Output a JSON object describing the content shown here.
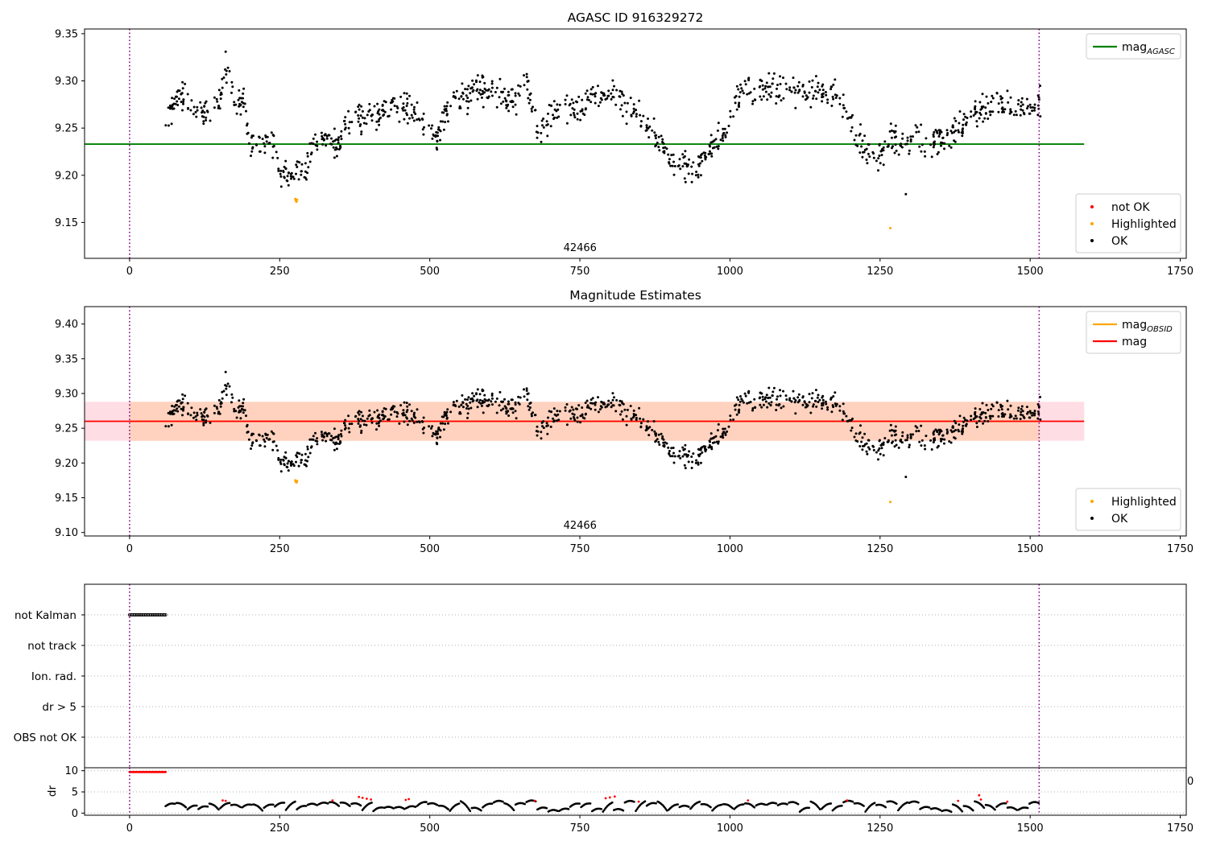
{
  "colors": {
    "ok": "#000000",
    "highlighted": "#ffa500",
    "not_ok": "#ff0000",
    "mag_agasc": "#008000",
    "mag_obsid": "#ffa500",
    "mag": "#ff0000",
    "band_outer": "#ffdde4",
    "band_inner": "#ffd2bf",
    "vline": "#800080",
    "grid": "#b0b0b0"
  },
  "chart_data": [
    {
      "type": "scatter",
      "title": "AGASC ID 916329272",
      "xlim": [
        -75,
        1760
      ],
      "ylim": [
        9.112,
        9.355
      ],
      "x_ticks": [
        0,
        250,
        500,
        750,
        1000,
        1250,
        1500,
        1750
      ],
      "y_ticks": [
        9.15,
        9.2,
        9.25,
        9.3,
        9.35
      ],
      "annotation": {
        "text": "42466",
        "x": 757
      },
      "vlines": [
        0,
        1515
      ],
      "hlines": [
        {
          "name": "mag_AGASC",
          "y": 9.233,
          "x_range": [
            -75,
            1590
          ]
        }
      ],
      "legend_upper": [
        {
          "label": "mag",
          "sub": "AGASC",
          "kind": "line",
          "color": "#008000"
        }
      ],
      "legend_lower": [
        {
          "label": "not OK",
          "kind": "dot",
          "color": "#ff0000"
        },
        {
          "label": "Highlighted",
          "kind": "dot",
          "color": "#ffa500"
        },
        {
          "label": "OK",
          "kind": "dot",
          "color": "#000000"
        }
      ],
      "series": [
        {
          "name": "OK",
          "shape": [
            [
              62,
              9.255
            ],
            [
              75,
              9.28
            ],
            [
              90,
              9.285
            ],
            [
              105,
              9.268
            ],
            [
              120,
              9.265
            ],
            [
              140,
              9.268
            ],
            [
              152,
              9.285
            ],
            [
              160,
              9.318
            ],
            [
              168,
              9.3
            ],
            [
              175,
              9.27
            ],
            [
              190,
              9.282
            ],
            [
              200,
              9.232
            ],
            [
              215,
              9.238
            ],
            [
              225,
              9.232
            ],
            [
              240,
              9.232
            ],
            [
              252,
              9.2
            ],
            [
              265,
              9.198
            ],
            [
              280,
              9.2
            ],
            [
              295,
              9.205
            ],
            [
              305,
              9.235
            ],
            [
              330,
              9.24
            ],
            [
              350,
              9.235
            ],
            [
              370,
              9.262
            ],
            [
              395,
              9.258
            ],
            [
              420,
              9.268
            ],
            [
              445,
              9.272
            ],
            [
              465,
              9.27
            ],
            [
              480,
              9.262
            ],
            [
              495,
              9.248
            ],
            [
              510,
              9.238
            ],
            [
              520,
              9.255
            ],
            [
              540,
              9.282
            ],
            [
              560,
              9.285
            ],
            [
              580,
              9.292
            ],
            [
              600,
              9.292
            ],
            [
              620,
              9.282
            ],
            [
              640,
              9.278
            ],
            [
              660,
              9.3
            ],
            [
              670,
              9.265
            ],
            [
              685,
              9.248
            ],
            [
              700,
              9.262
            ],
            [
              715,
              9.272
            ],
            [
              740,
              9.27
            ],
            [
              760,
              9.28
            ],
            [
              780,
              9.285
            ],
            [
              800,
              9.29
            ],
            [
              820,
              9.28
            ],
            [
              845,
              9.265
            ],
            [
              865,
              9.25
            ],
            [
              885,
              9.235
            ],
            [
              905,
              9.212
            ],
            [
              925,
              9.208
            ],
            [
              945,
              9.21
            ],
            [
              960,
              9.222
            ],
            [
              975,
              9.235
            ],
            [
              995,
              9.248
            ],
            [
              1010,
              9.278
            ],
            [
              1025,
              9.295
            ],
            [
              1045,
              9.292
            ],
            [
              1065,
              9.292
            ],
            [
              1090,
              9.292
            ],
            [
              1120,
              9.29
            ],
            [
              1150,
              9.288
            ],
            [
              1175,
              9.285
            ],
            [
              1195,
              9.265
            ],
            [
              1210,
              9.24
            ],
            [
              1225,
              9.228
            ],
            [
              1240,
              9.212
            ],
            [
              1260,
              9.232
            ],
            [
              1275,
              9.238
            ],
            [
              1295,
              9.235
            ],
            [
              1315,
              9.238
            ],
            [
              1335,
              9.232
            ],
            [
              1350,
              9.24
            ],
            [
              1370,
              9.245
            ],
            [
              1390,
              9.252
            ],
            [
              1405,
              9.268
            ],
            [
              1420,
              9.27
            ],
            [
              1440,
              9.275
            ],
            [
              1460,
              9.275
            ],
            [
              1480,
              9.272
            ],
            [
              1500,
              9.272
            ],
            [
              1515,
              9.275
            ]
          ],
          "x_range": [
            60,
            1517
          ],
          "n": 1150,
          "noise": 0.011
        },
        {
          "name": "Highlighted",
          "points": [
            [
              276,
              9.175
            ],
            [
              277,
              9.173
            ],
            [
              278,
              9.172
            ],
            [
              279,
              9.174
            ],
            [
              1267,
              9.144
            ]
          ]
        },
        {
          "name": "OK",
          "points": [
            [
              1293,
              9.18
            ]
          ]
        }
      ]
    },
    {
      "type": "scatter",
      "title": "Magnitude Estimates",
      "xlim": [
        -75,
        1760
      ],
      "ylim": [
        9.095,
        9.425
      ],
      "x_ticks": [
        0,
        250,
        500,
        750,
        1000,
        1250,
        1500,
        1750
      ],
      "y_ticks": [
        9.1,
        9.15,
        9.2,
        9.25,
        9.3,
        9.35,
        9.4
      ],
      "annotation": {
        "text": "42466",
        "x": 757
      },
      "vlines": [
        0,
        1515
      ],
      "bands": [
        {
          "y": [
            9.232,
            9.288
          ],
          "x_range": [
            -75,
            1590
          ],
          "color": "#ffdde4"
        },
        {
          "y": [
            9.232,
            9.288
          ],
          "x_range": [
            0,
            1515
          ],
          "color": "#ffd2bf"
        }
      ],
      "hlines": [
        {
          "name": "mag_OBSID",
          "y": 9.26,
          "x_range": [
            0,
            1515
          ]
        },
        {
          "name": "mag",
          "y": 9.26,
          "x_range": [
            -75,
            1590
          ]
        }
      ],
      "legend_upper": [
        {
          "label": "mag",
          "sub": "OBSID",
          "kind": "line",
          "color": "#ffa500"
        },
        {
          "label": "mag",
          "sub": "",
          "kind": "line",
          "color": "#ff0000"
        }
      ],
      "legend_lower": [
        {
          "label": "Highlighted",
          "kind": "dot",
          "color": "#ffa500"
        },
        {
          "label": "OK",
          "kind": "dot",
          "color": "#000000"
        }
      ],
      "series": [
        {
          "name": "OK",
          "same_as_panel": 0
        },
        {
          "name": "Highlighted",
          "points": [
            [
              276,
              9.175
            ],
            [
              277,
              9.173
            ],
            [
              278,
              9.172
            ],
            [
              279,
              9.174
            ],
            [
              1267,
              9.144
            ]
          ]
        },
        {
          "name": "OK",
          "points": [
            [
              1293,
              9.18
            ]
          ]
        }
      ]
    },
    {
      "type": "scatter",
      "xlim": [
        -75,
        1760
      ],
      "category_ticks": [
        "not Kalman",
        "not track",
        "Ion. rad.",
        "dr > 5",
        "OBS not OK"
      ],
      "vlines": [
        0,
        1515
      ],
      "flags": [
        {
          "category": "not Kalman",
          "x_range": [
            0,
            60
          ],
          "count": 30
        }
      ],
      "series": []
    },
    {
      "type": "scatter",
      "ylabel": "dr",
      "xlim": [
        -75,
        1760
      ],
      "ylim": [
        -0.5,
        10.7
      ],
      "x_ticks": [
        0,
        250,
        500,
        750,
        1000,
        1250,
        1500,
        1750
      ],
      "y_ticks": [
        0,
        5,
        10
      ],
      "vlines": [
        0,
        1515
      ],
      "stray_tick_label": "0",
      "series": [
        {
          "name": "dr_flat",
          "points_range": {
            "x": [
              0,
              60
            ],
            "y": 9.7,
            "count": 30
          },
          "color": "#ff0000"
        },
        {
          "name": "dr",
          "x_range": [
            60,
            1517
          ],
          "n": 900,
          "segments": 80,
          "y_range": [
            0.3,
            2.8
          ]
        },
        {
          "name": "dr_red",
          "points": [
            [
              155,
              3.0
            ],
            [
              160,
              2.9
            ],
            [
              338,
              3.0
            ],
            [
              382,
              3.8
            ],
            [
              388,
              3.6
            ],
            [
              395,
              3.4
            ],
            [
              402,
              3.2
            ],
            [
              460,
              3.1
            ],
            [
              465,
              3.3
            ],
            [
              675,
              2.9
            ],
            [
              793,
              3.5
            ],
            [
              800,
              3.7
            ],
            [
              808,
              3.9
            ],
            [
              848,
              2.7
            ],
            [
              1030,
              3.0
            ],
            [
              1195,
              3.0
            ],
            [
              1380,
              2.9
            ],
            [
              1415,
              4.2
            ],
            [
              1418,
              3.2
            ],
            [
              1462,
              2.7
            ]
          ]
        }
      ]
    }
  ]
}
